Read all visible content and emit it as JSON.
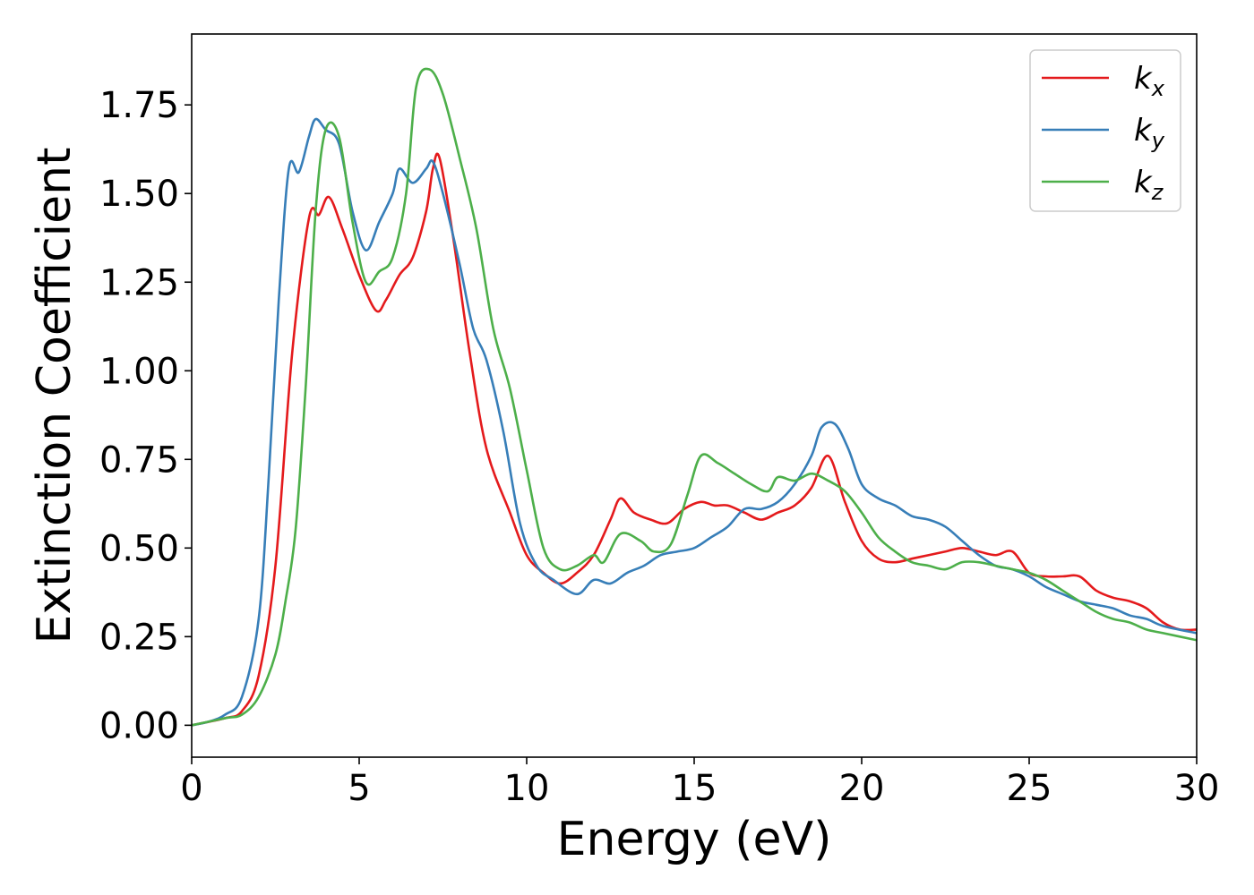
{
  "chart_data": {
    "type": "line",
    "xlabel": "Energy (eV)",
    "ylabel": "Extinction Coefficient",
    "xlim": [
      0,
      30
    ],
    "ylim": [
      -0.09,
      1.95
    ],
    "xticks": [
      0,
      5,
      10,
      15,
      20,
      25,
      30
    ],
    "xtick_labels": [
      "0",
      "5",
      "10",
      "15",
      "20",
      "25",
      "30"
    ],
    "yticks": [
      0,
      0.25,
      0.5,
      0.75,
      1.0,
      1.25,
      1.5,
      1.75
    ],
    "ytick_labels": [
      "0.00",
      "0.25",
      "0.50",
      "0.75",
      "1.00",
      "1.25",
      "1.50",
      "1.75"
    ],
    "grid": false,
    "legend_position": "top-right",
    "series": [
      {
        "name": "k",
        "subscript": "x",
        "color": "#e41a1c",
        "points": [
          [
            0,
            0
          ],
          [
            1,
            0.02
          ],
          [
            1.5,
            0.04
          ],
          [
            2,
            0.14
          ],
          [
            2.5,
            0.45
          ],
          [
            3,
            1.05
          ],
          [
            3.5,
            1.43
          ],
          [
            3.8,
            1.44
          ],
          [
            4.1,
            1.49
          ],
          [
            4.5,
            1.4
          ],
          [
            5,
            1.27
          ],
          [
            5.5,
            1.17
          ],
          [
            5.8,
            1.2
          ],
          [
            6.2,
            1.27
          ],
          [
            6.6,
            1.32
          ],
          [
            7,
            1.45
          ],
          [
            7.2,
            1.57
          ],
          [
            7.4,
            1.6
          ],
          [
            7.8,
            1.38
          ],
          [
            8.3,
            1.05
          ],
          [
            8.8,
            0.78
          ],
          [
            9.5,
            0.6
          ],
          [
            10,
            0.48
          ],
          [
            10.5,
            0.43
          ],
          [
            11,
            0.4
          ],
          [
            11.5,
            0.43
          ],
          [
            12,
            0.48
          ],
          [
            12.5,
            0.58
          ],
          [
            12.8,
            0.64
          ],
          [
            13.2,
            0.6
          ],
          [
            13.7,
            0.58
          ],
          [
            14.2,
            0.57
          ],
          [
            14.7,
            0.61
          ],
          [
            15.2,
            0.63
          ],
          [
            15.6,
            0.62
          ],
          [
            16,
            0.62
          ],
          [
            16.5,
            0.6
          ],
          [
            17,
            0.58
          ],
          [
            17.5,
            0.6
          ],
          [
            18,
            0.62
          ],
          [
            18.5,
            0.67
          ],
          [
            19,
            0.76
          ],
          [
            19.5,
            0.63
          ],
          [
            20,
            0.52
          ],
          [
            20.5,
            0.47
          ],
          [
            21,
            0.46
          ],
          [
            21.5,
            0.47
          ],
          [
            22,
            0.48
          ],
          [
            22.5,
            0.49
          ],
          [
            23,
            0.5
          ],
          [
            23.5,
            0.49
          ],
          [
            24,
            0.48
          ],
          [
            24.5,
            0.49
          ],
          [
            25,
            0.43
          ],
          [
            25.5,
            0.42
          ],
          [
            26,
            0.42
          ],
          [
            26.5,
            0.42
          ],
          [
            27,
            0.38
          ],
          [
            27.5,
            0.36
          ],
          [
            28,
            0.35
          ],
          [
            28.5,
            0.33
          ],
          [
            29,
            0.29
          ],
          [
            29.5,
            0.27
          ],
          [
            30,
            0.27
          ]
        ]
      },
      {
        "name": "k",
        "subscript": "y",
        "color": "#377eb8",
        "points": [
          [
            0,
            0
          ],
          [
            0.5,
            0.01
          ],
          [
            1,
            0.03
          ],
          [
            1.5,
            0.08
          ],
          [
            2,
            0.3
          ],
          [
            2.3,
            0.7
          ],
          [
            2.6,
            1.2
          ],
          [
            2.9,
            1.57
          ],
          [
            3.2,
            1.56
          ],
          [
            3.5,
            1.66
          ],
          [
            3.7,
            1.71
          ],
          [
            4,
            1.68
          ],
          [
            4.4,
            1.64
          ],
          [
            4.8,
            1.45
          ],
          [
            5.2,
            1.34
          ],
          [
            5.6,
            1.42
          ],
          [
            6,
            1.5
          ],
          [
            6.2,
            1.57
          ],
          [
            6.6,
            1.53
          ],
          [
            7,
            1.57
          ],
          [
            7.2,
            1.59
          ],
          [
            7.5,
            1.5
          ],
          [
            8,
            1.3
          ],
          [
            8.4,
            1.12
          ],
          [
            8.8,
            1.03
          ],
          [
            9.3,
            0.83
          ],
          [
            9.8,
            0.57
          ],
          [
            10.3,
            0.45
          ],
          [
            10.8,
            0.41
          ],
          [
            11.5,
            0.37
          ],
          [
            12,
            0.41
          ],
          [
            12.5,
            0.4
          ],
          [
            13,
            0.43
          ],
          [
            13.5,
            0.45
          ],
          [
            14,
            0.48
          ],
          [
            14.5,
            0.49
          ],
          [
            15,
            0.5
          ],
          [
            15.5,
            0.53
          ],
          [
            16,
            0.56
          ],
          [
            16.5,
            0.61
          ],
          [
            17,
            0.61
          ],
          [
            17.5,
            0.63
          ],
          [
            18,
            0.68
          ],
          [
            18.5,
            0.76
          ],
          [
            18.8,
            0.84
          ],
          [
            19.2,
            0.85
          ],
          [
            19.6,
            0.78
          ],
          [
            20,
            0.68
          ],
          [
            20.5,
            0.64
          ],
          [
            21,
            0.62
          ],
          [
            21.5,
            0.59
          ],
          [
            22,
            0.58
          ],
          [
            22.5,
            0.56
          ],
          [
            23,
            0.52
          ],
          [
            23.5,
            0.48
          ],
          [
            24,
            0.45
          ],
          [
            24.5,
            0.44
          ],
          [
            25,
            0.42
          ],
          [
            25.5,
            0.39
          ],
          [
            26,
            0.37
          ],
          [
            26.5,
            0.35
          ],
          [
            27,
            0.34
          ],
          [
            27.5,
            0.33
          ],
          [
            28,
            0.31
          ],
          [
            28.5,
            0.3
          ],
          [
            29,
            0.28
          ],
          [
            30,
            0.26
          ]
        ]
      },
      {
        "name": "k",
        "subscript": "z",
        "color": "#4daf4a",
        "points": [
          [
            0,
            0
          ],
          [
            1,
            0.02
          ],
          [
            1.5,
            0.03
          ],
          [
            2,
            0.08
          ],
          [
            2.5,
            0.2
          ],
          [
            2.8,
            0.35
          ],
          [
            3.1,
            0.55
          ],
          [
            3.4,
            0.95
          ],
          [
            3.7,
            1.45
          ],
          [
            4,
            1.68
          ],
          [
            4.4,
            1.66
          ],
          [
            4.8,
            1.42
          ],
          [
            5.2,
            1.25
          ],
          [
            5.6,
            1.28
          ],
          [
            6,
            1.32
          ],
          [
            6.4,
            1.5
          ],
          [
            6.7,
            1.8
          ],
          [
            7.1,
            1.85
          ],
          [
            7.5,
            1.78
          ],
          [
            8,
            1.6
          ],
          [
            8.5,
            1.4
          ],
          [
            9,
            1.12
          ],
          [
            9.5,
            0.95
          ],
          [
            10,
            0.72
          ],
          [
            10.5,
            0.5
          ],
          [
            11,
            0.44
          ],
          [
            11.5,
            0.45
          ],
          [
            12,
            0.48
          ],
          [
            12.3,
            0.46
          ],
          [
            12.8,
            0.54
          ],
          [
            13.4,
            0.52
          ],
          [
            13.8,
            0.49
          ],
          [
            14.3,
            0.51
          ],
          [
            14.8,
            0.65
          ],
          [
            15.2,
            0.76
          ],
          [
            15.7,
            0.74
          ],
          [
            16.2,
            0.71
          ],
          [
            16.7,
            0.68
          ],
          [
            17.2,
            0.66
          ],
          [
            17.5,
            0.7
          ],
          [
            18,
            0.69
          ],
          [
            18.5,
            0.71
          ],
          [
            19,
            0.69
          ],
          [
            19.5,
            0.66
          ],
          [
            20,
            0.6
          ],
          [
            20.5,
            0.53
          ],
          [
            21,
            0.49
          ],
          [
            21.5,
            0.46
          ],
          [
            22,
            0.45
          ],
          [
            22.5,
            0.44
          ],
          [
            23,
            0.46
          ],
          [
            23.5,
            0.46
          ],
          [
            24,
            0.45
          ],
          [
            24.5,
            0.44
          ],
          [
            25,
            0.43
          ],
          [
            25.5,
            0.41
          ],
          [
            26,
            0.38
          ],
          [
            26.5,
            0.35
          ],
          [
            27,
            0.32
          ],
          [
            27.5,
            0.3
          ],
          [
            28,
            0.29
          ],
          [
            28.5,
            0.27
          ],
          [
            29,
            0.26
          ],
          [
            30,
            0.24
          ]
        ]
      }
    ]
  }
}
